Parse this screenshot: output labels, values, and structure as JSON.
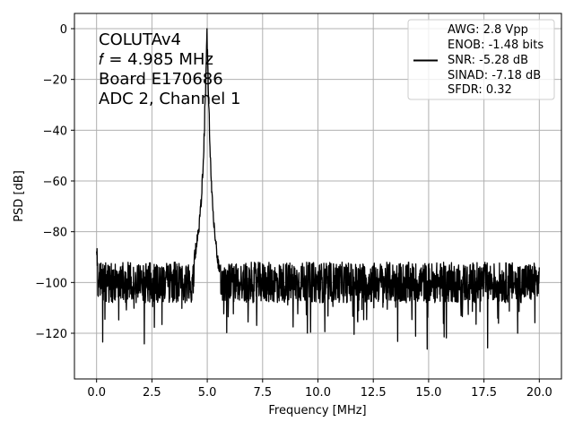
{
  "chart_data": {
    "type": "line",
    "title": "",
    "xlabel": "Frequency [MHz]",
    "ylabel": "PSD [dB]",
    "xlim": [
      -1.0,
      21.0
    ],
    "ylim": [
      -138,
      6
    ],
    "xticks": [
      0.0,
      2.5,
      5.0,
      7.5,
      10.0,
      12.5,
      15.0,
      17.5,
      20.0
    ],
    "xtick_labels": [
      "0.0",
      "2.5",
      "5.0",
      "7.5",
      "10.0",
      "12.5",
      "15.0",
      "17.5",
      "20.0"
    ],
    "yticks": [
      0,
      -20,
      -40,
      -60,
      -80,
      -100,
      -120
    ],
    "ytick_labels": [
      "0",
      "−20",
      "−40",
      "−60",
      "−80",
      "−100",
      "−120"
    ],
    "grid": true,
    "legend_position": "top-right",
    "annotation": {
      "lines": [
        "COLUTAv4",
        "𝑓 = 4.985 MHz",
        "Board E170686",
        "ADC 2, Channel 1"
      ]
    },
    "legend": {
      "lines": [
        "AWG: 2.8 Vpp",
        "ENOB: -1.48 bits",
        "SNR: -5.28 dB",
        "SINAD: -7.18 dB",
        "SFDR: 0.32"
      ]
    },
    "series": [
      {
        "color": "#000000",
        "signal_frequency_mhz": 4.985,
        "peak_db": 0,
        "noise_floor_db": -100,
        "x_range": [
          0,
          20
        ],
        "peak": {
          "x": [
            4.4,
            4.6,
            4.75,
            4.85,
            4.92,
            4.985,
            5.05,
            5.12,
            5.2,
            5.3,
            5.45,
            5.6
          ],
          "y": [
            -92,
            -80,
            -65,
            -45,
            -25,
            0,
            -25,
            -45,
            -65,
            -78,
            -90,
            -96
          ]
        }
      }
    ]
  },
  "colors": {
    "line": "#000000",
    "grid": "#b0b0b0",
    "axes": "#000000"
  }
}
